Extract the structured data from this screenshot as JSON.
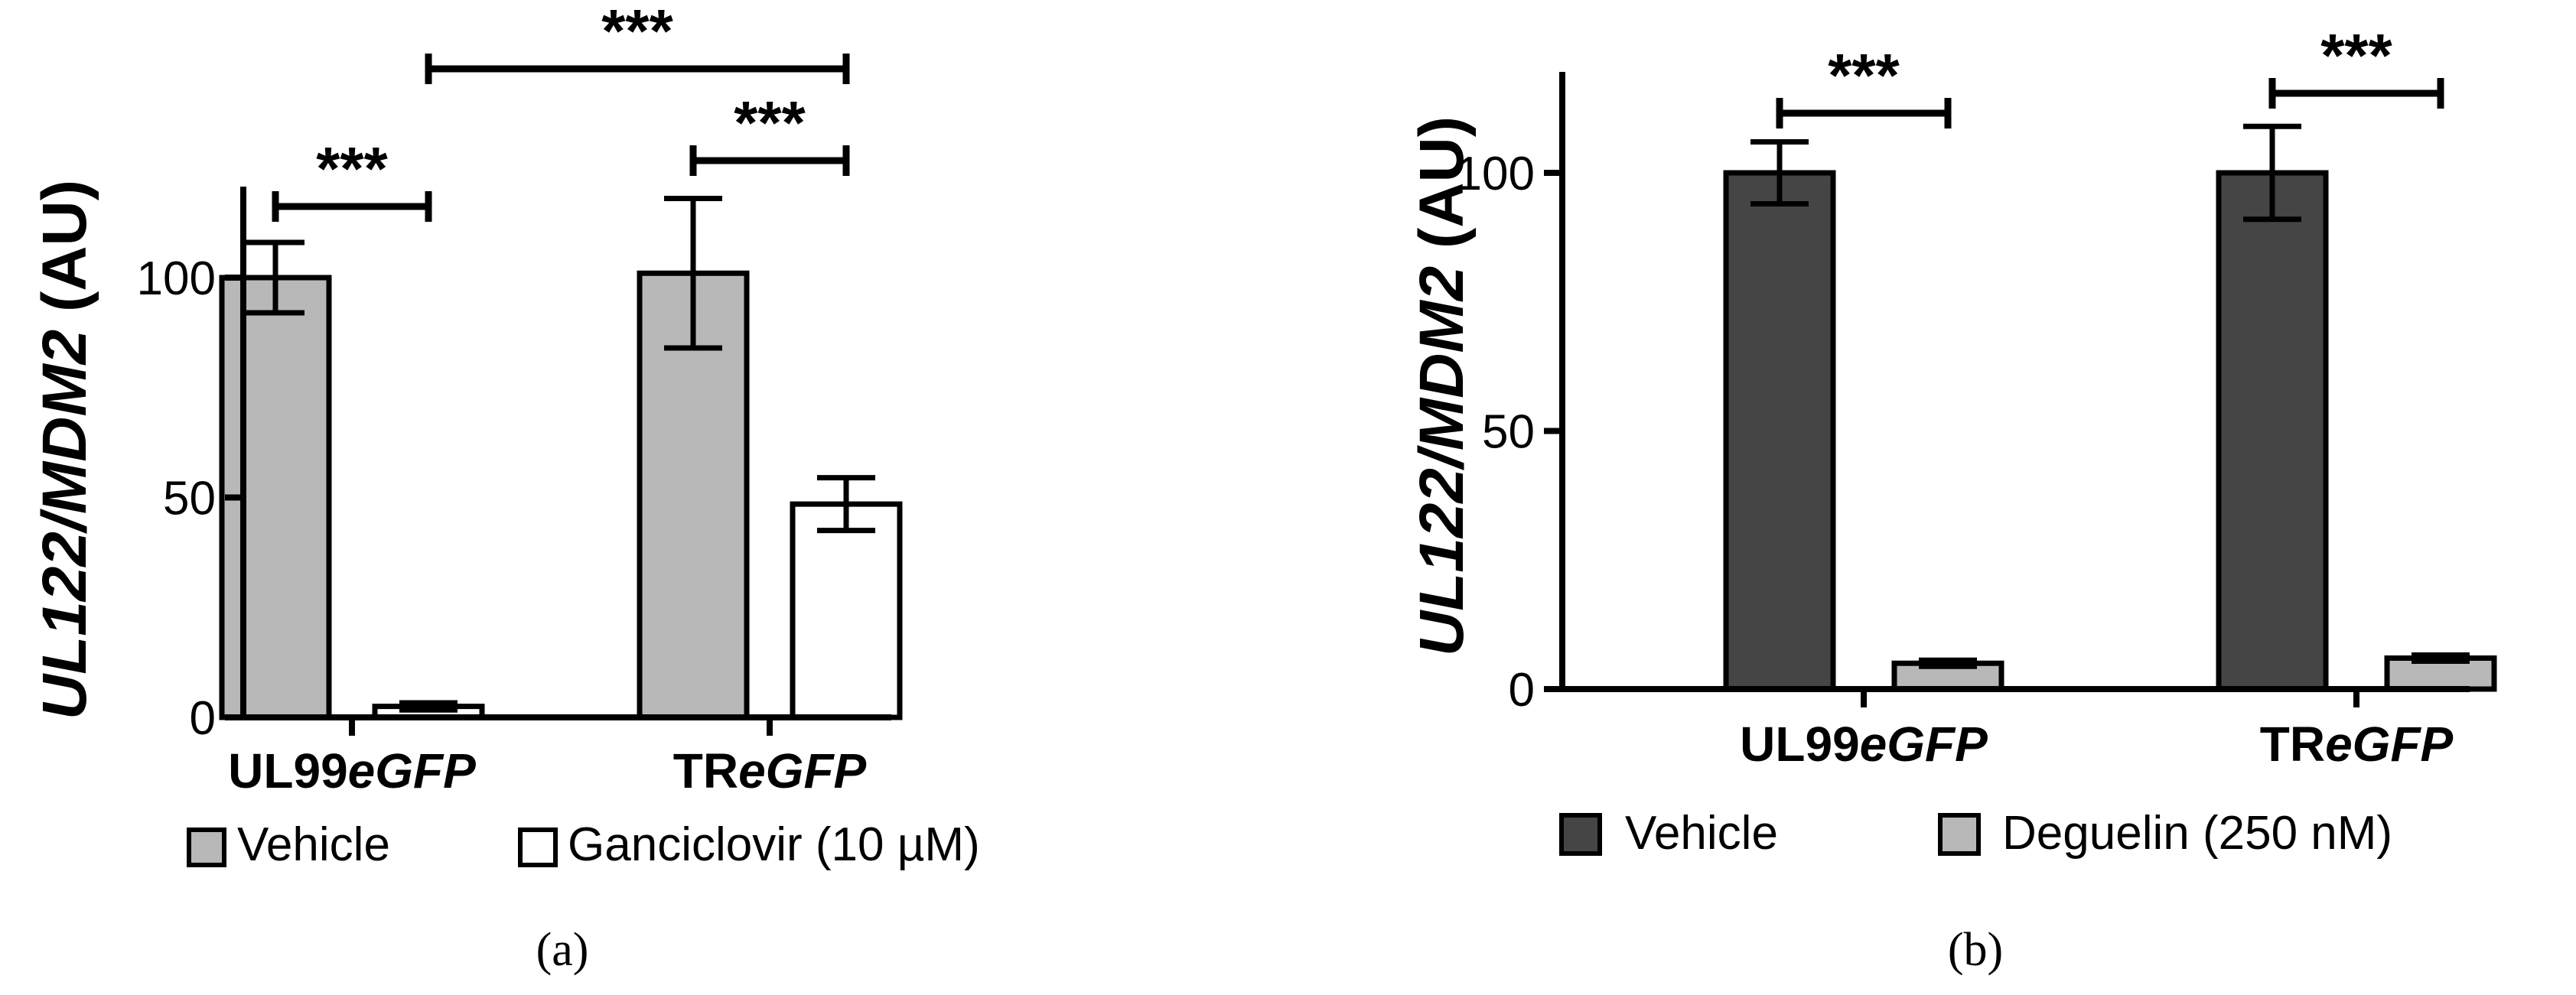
{
  "chart_data": [
    {
      "type": "bar",
      "panel_label": "(a)",
      "ylabel_parts": [
        {
          "text": "UL122/MDM2",
          "italic": true
        },
        {
          "text": " (AU)",
          "italic": false
        }
      ],
      "ylim": [
        0,
        120
      ],
      "yticks": [
        0,
        50,
        100
      ],
      "categories": [
        {
          "parts": [
            {
              "text": "UL99",
              "italic": false
            },
            {
              "text": "eGFP",
              "italic": true
            }
          ]
        },
        {
          "parts": [
            {
              "text": "TR",
              "italic": false
            },
            {
              "text": "eGFP",
              "italic": true
            }
          ]
        }
      ],
      "series": [
        {
          "name": "Vehicle",
          "color": "#b8b8b8",
          "values": [
            100,
            101
          ],
          "errors": [
            8,
            17
          ]
        },
        {
          "name": "Ganciclovir (10 µM)",
          "color": "#ffffff",
          "values": [
            2.5,
            48.5
          ],
          "errors": [
            0.8,
            6
          ]
        }
      ],
      "legend_position": "bottom",
      "significance": [
        {
          "label": "***",
          "from": [
            0,
            0
          ],
          "to": [
            0,
            1
          ]
        },
        {
          "label": "***",
          "from": [
            1,
            0
          ],
          "to": [
            1,
            1
          ]
        },
        {
          "label": "***",
          "from": [
            0,
            1
          ],
          "to": [
            1,
            1
          ]
        }
      ],
      "grid": false
    },
    {
      "type": "bar",
      "panel_label": "(b)",
      "ylabel_parts": [
        {
          "text": "UL122/MDM2",
          "italic": true
        },
        {
          "text": " (AU)",
          "italic": false
        }
      ],
      "ylim": [
        0,
        120
      ],
      "yticks": [
        0,
        50,
        100
      ],
      "categories": [
        {
          "parts": [
            {
              "text": "UL99",
              "italic": false
            },
            {
              "text": "eGFP",
              "italic": true
            }
          ]
        },
        {
          "parts": [
            {
              "text": "TR",
              "italic": false
            },
            {
              "text": "eGFP",
              "italic": true
            }
          ]
        }
      ],
      "series": [
        {
          "name": "Vehicle",
          "color": "#454545",
          "values": [
            100,
            100
          ],
          "errors": [
            6,
            9
          ]
        },
        {
          "name": "Deguelin (250 nM)",
          "color": "#b8b8b8",
          "values": [
            5,
            6
          ],
          "errors": [
            0.6,
            0.6
          ]
        }
      ],
      "legend_position": "bottom",
      "significance": [
        {
          "label": "***",
          "from": [
            0,
            0
          ],
          "to": [
            0,
            1
          ]
        },
        {
          "label": "***",
          "from": [
            1,
            0
          ],
          "to": [
            1,
            1
          ]
        }
      ],
      "grid": false
    }
  ]
}
